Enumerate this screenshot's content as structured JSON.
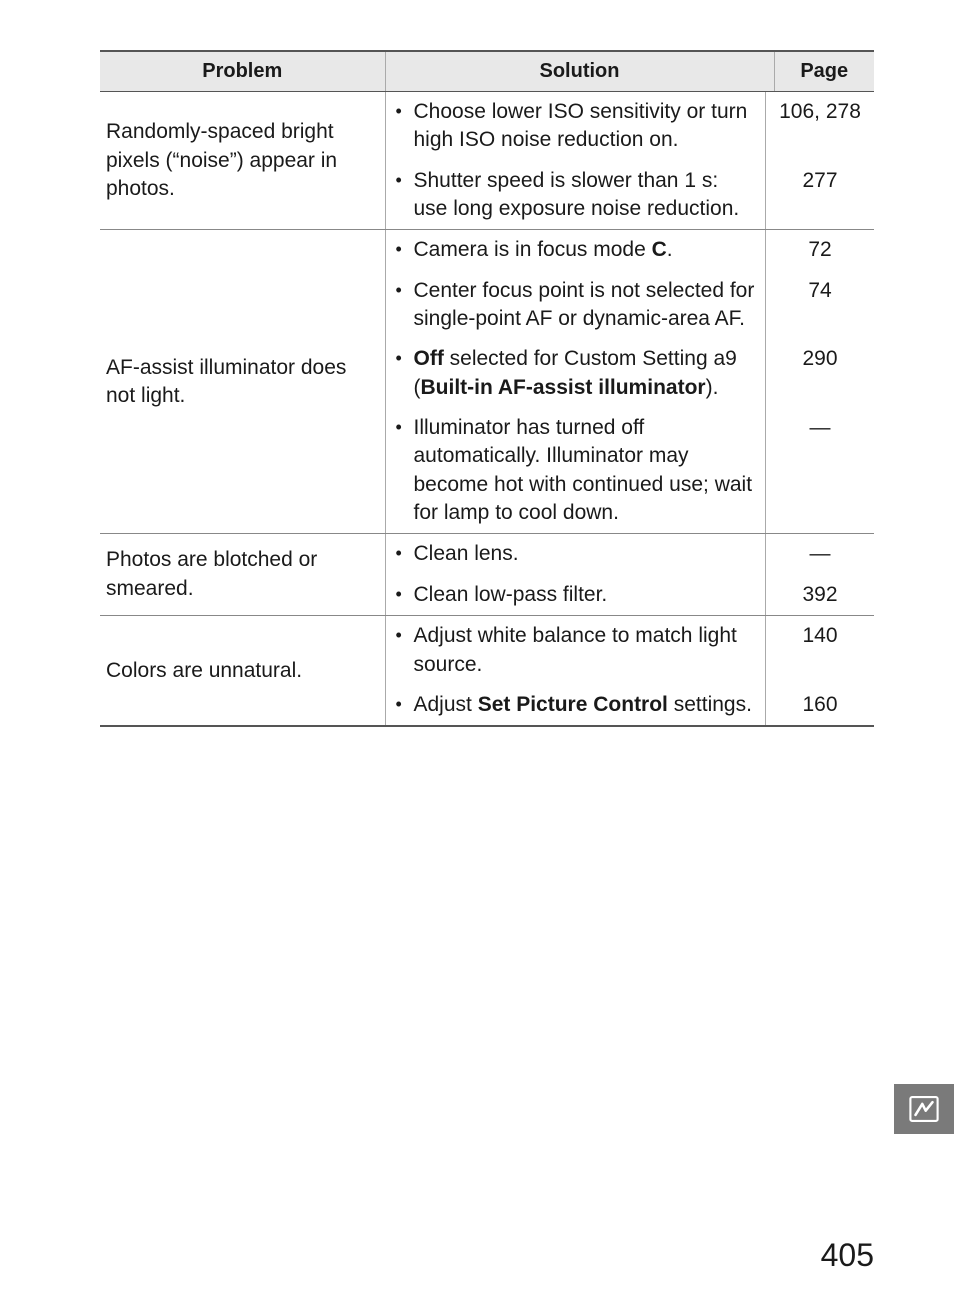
{
  "headers": {
    "problem": "Problem",
    "solution": "Solution",
    "page": "Page"
  },
  "rows": [
    {
      "problem": "Randomly-spaced bright pixels (“noise”) appear in photos.",
      "items": [
        {
          "segments": [
            {
              "text": "Choose lower ISO sensitivity or turn high ISO noise reduction on."
            }
          ],
          "page": "106, 278"
        },
        {
          "segments": [
            {
              "text": "Shutter speed is slower than 1 s: use long exposure noise reduction."
            }
          ],
          "page": "277"
        }
      ]
    },
    {
      "problem": "AF-assist illuminator does not light.",
      "items": [
        {
          "segments": [
            {
              "text": "Camera is in focus mode "
            },
            {
              "text": "C",
              "bold": true
            },
            {
              "text": "."
            }
          ],
          "page": "72"
        },
        {
          "segments": [
            {
              "text": "Center focus point is not selected for single-point AF or dynamic-area AF."
            }
          ],
          "page": "74"
        },
        {
          "segments": [
            {
              "text": "Off",
              "bold": true
            },
            {
              "text": " selected for Custom Setting a9 ("
            },
            {
              "text": "Built-in AF-assist illuminator",
              "bold": true
            },
            {
              "text": ")."
            }
          ],
          "page": "290"
        },
        {
          "segments": [
            {
              "text": "Illuminator has turned off automatically. Illuminator may become hot with continued use; wait for lamp to cool down."
            }
          ],
          "page": "—"
        }
      ]
    },
    {
      "problem": "Photos are blotched or smeared.",
      "items": [
        {
          "segments": [
            {
              "text": "Clean lens."
            }
          ],
          "page": "—"
        },
        {
          "segments": [
            {
              "text": "Clean low-pass filter."
            }
          ],
          "page": "392"
        }
      ]
    },
    {
      "problem": "Colors are unnatural.",
      "items": [
        {
          "segments": [
            {
              "text": "Adjust white balance to match light source."
            }
          ],
          "page": "140"
        },
        {
          "segments": [
            {
              "text": "Adjust "
            },
            {
              "text": "Set Picture Control",
              "bold": true
            },
            {
              "text": " settings."
            }
          ],
          "page": "160"
        }
      ]
    }
  ],
  "pageNumber": "405",
  "colors": {
    "header_bg": "#e8e8e8",
    "border_dark": "#555555",
    "border_light": "#aaaaaa",
    "tab_bg": "#7a7a7a",
    "tab_fg": "#ffffff",
    "text": "#1a1a1a",
    "background": "#ffffff"
  },
  "font_sizes": {
    "header_pt": 20,
    "body_pt": 21,
    "page_number_pt": 32
  }
}
